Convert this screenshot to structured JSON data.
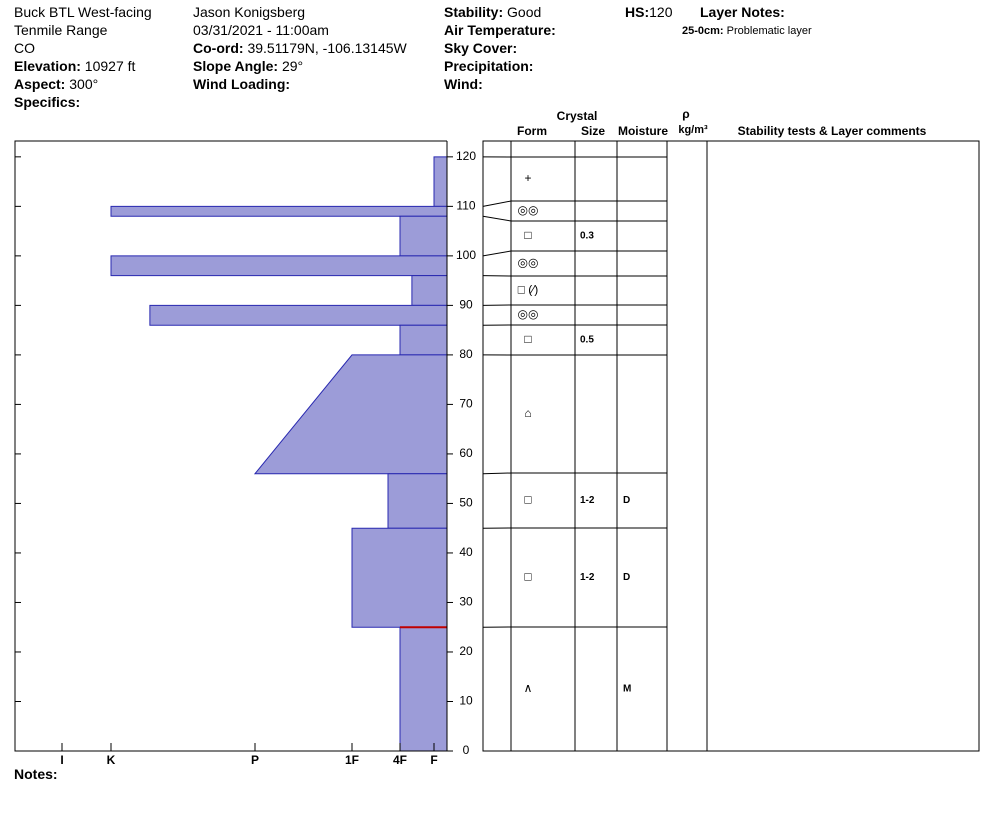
{
  "header": {
    "left": [
      "Buck BTL West-facing",
      "Tenmile Range",
      "CO"
    ],
    "elevation": {
      "label": "Elevation:",
      "value": "10927 ft"
    },
    "aspect": {
      "label": "Aspect:",
      "value": "300°"
    },
    "specifics": {
      "label": "Specifics:"
    },
    "observer": "Jason Konigsberg",
    "date": "03/31/2021 - 11:00am",
    "coord": {
      "label": "Co-ord:",
      "value": "39.51179N, -106.13145W"
    },
    "slope": {
      "label": "Slope Angle:",
      "value": "29°"
    },
    "wind_loading": {
      "label": "Wind Loading:"
    },
    "stability": {
      "label": "Stability:",
      "value": "Good"
    },
    "air_temp": {
      "label": "Air Temperature:"
    },
    "sky": {
      "label": "Sky Cover:"
    },
    "precip": {
      "label": "Precipitation:"
    },
    "wind": {
      "label": "Wind:"
    },
    "hs": {
      "label": "HS:",
      "value": "120"
    },
    "layer_notes": {
      "label": "Layer Notes:",
      "range": "25-0cm:",
      "text": "Problematic layer"
    },
    "notes": {
      "label": "Notes:"
    }
  },
  "chart_data": {
    "type": "profile",
    "color": "#9c9cd8",
    "flag_color": "#c00000",
    "flagged_depth": 25,
    "ylim": [
      0,
      123.2
    ],
    "yticks": [
      0,
      10,
      20,
      30,
      40,
      50,
      60,
      70,
      80,
      90,
      100,
      110,
      120
    ],
    "xlim": [
      7,
      0
    ],
    "xticks": [
      {
        "value": 6,
        "label": "I"
      },
      {
        "value": 5,
        "label": "K"
      },
      {
        "value": 4,
        "label": "P"
      },
      {
        "value": 3,
        "label": "1F"
      },
      {
        "value": 2,
        "label": "4F"
      },
      {
        "value": 1,
        "label": "F"
      }
    ],
    "table_headers": {
      "crystal": "Crystal",
      "form": "Form",
      "size": "Size",
      "moisture": "Moisture",
      "rho": "ρ",
      "density": "kg/m³",
      "comments": "Stability tests & Layer comments"
    },
    "layers": [
      {
        "top": 120,
        "bottom": 110,
        "hardness_top": 1,
        "hardness_bottom": 1,
        "form": "+"
      },
      {
        "top": 110,
        "bottom": 108,
        "hardness_top": 5,
        "hardness_bottom": 5,
        "form": "◎◎"
      },
      {
        "top": 108,
        "bottom": 100,
        "hardness_top": 2,
        "hardness_bottom": 2,
        "form": "□",
        "size": "0.3"
      },
      {
        "top": 100,
        "bottom": 96,
        "hardness_top": 5,
        "hardness_bottom": 5,
        "form": "◎◎"
      },
      {
        "top": 96,
        "bottom": 90,
        "hardness_top": 1.65,
        "hardness_bottom": 1.65,
        "form": "□ (∕)"
      },
      {
        "top": 90,
        "bottom": 86,
        "hardness_top": 4.73,
        "hardness_bottom": 4.73,
        "form": "◎◎"
      },
      {
        "top": 86,
        "bottom": 80,
        "hardness_top": 2,
        "hardness_bottom": 2,
        "form": "□",
        "size": "0.5"
      },
      {
        "top": 80,
        "bottom": 56,
        "hardness_top": 3,
        "hardness_bottom": 4,
        "form": "⌂"
      },
      {
        "top": 56,
        "bottom": 45,
        "hardness_top": 2.25,
        "hardness_bottom": 2.25,
        "form": "□",
        "size": "1-2",
        "moisture": "D"
      },
      {
        "top": 45,
        "bottom": 25,
        "hardness_top": 3,
        "hardness_bottom": 3,
        "form": "□",
        "size": "1-2",
        "moisture": "D"
      },
      {
        "top": 25,
        "bottom": 0,
        "hardness_top": 2,
        "hardness_bottom": 2,
        "form": "∧",
        "moisture": "M"
      }
    ]
  }
}
